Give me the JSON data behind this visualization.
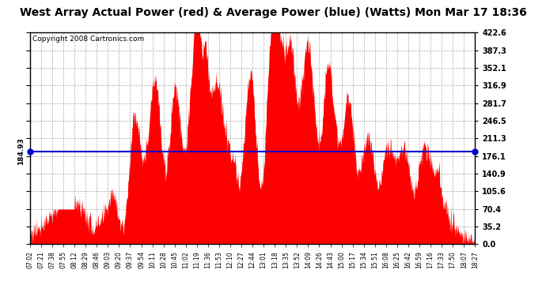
{
  "title": "West Array Actual Power (red) & Average Power (blue) (Watts) Mon Mar 17 18:36",
  "copyright": "Copyright 2008 Cartronics.com",
  "average_power": 184.93,
  "y_max": 422.6,
  "y_ticks": [
    0.0,
    35.2,
    70.4,
    105.6,
    140.9,
    176.1,
    211.3,
    246.5,
    281.7,
    316.9,
    352.1,
    387.3,
    422.6
  ],
  "fill_color": "#FF0000",
  "line_color": "#0000CC",
  "background_color": "#FFFFFF",
  "plot_bg_color": "#FFFFFF",
  "grid_color": "#AAAAAA",
  "title_fontsize": 10,
  "copyright_fontsize": 6.5,
  "time_labels": [
    "07:02",
    "07:21",
    "07:38",
    "07:55",
    "08:12",
    "08:29",
    "08:46",
    "09:03",
    "09:20",
    "09:37",
    "09:54",
    "10:11",
    "10:28",
    "10:45",
    "11:02",
    "11:19",
    "11:36",
    "11:53",
    "12:10",
    "12:27",
    "12:44",
    "13:01",
    "13:18",
    "13:35",
    "13:52",
    "14:09",
    "14:26",
    "14:43",
    "15:00",
    "15:17",
    "15:34",
    "15:51",
    "16:08",
    "16:25",
    "16:42",
    "16:59",
    "17:16",
    "17:33",
    "17:50",
    "18:07",
    "18:27"
  ]
}
